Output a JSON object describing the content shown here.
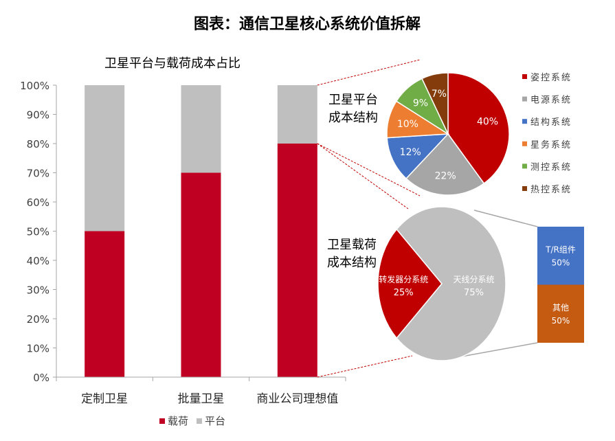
{
  "page": {
    "title": "图表：通信卫星核心系统价值拆解"
  },
  "colors": {
    "payload": "#C00022",
    "platform": "#BFBFBF",
    "attitude": "#C00000",
    "power": "#A6A6A6",
    "structure": "#4472C4",
    "housekeeping": "#ED7D31",
    "ttc": "#70AD47",
    "thermal": "#843C0C",
    "antenna": "#BFBFBF",
    "tr": "#4472C4",
    "other": "#C55A11",
    "connector_red": "#C00000",
    "connector_gray": "#A6A6A6"
  },
  "chart_data": [
    {
      "type": "bar",
      "stacked": true,
      "title": "卫星平台与载荷成本占比",
      "categories": [
        "定制卫星",
        "批量卫星",
        "商业公司理想值"
      ],
      "series": [
        {
          "name": "载荷",
          "values": [
            0.5,
            0.7,
            0.8
          ],
          "color": "#C00022"
        },
        {
          "name": "平台",
          "values": [
            0.5,
            0.3,
            0.2
          ],
          "color": "#BFBFBF"
        }
      ],
      "ylim": [
        0,
        1
      ],
      "yticks": [
        "0%",
        "10%",
        "20%",
        "30%",
        "40%",
        "50%",
        "60%",
        "70%",
        "80%",
        "90%",
        "100%"
      ],
      "grid": false,
      "legend": "bottom"
    },
    {
      "type": "pie",
      "title": "卫星平台\n成本结构",
      "slices": [
        {
          "name": "姿控系统",
          "value": 40,
          "label": "40%",
          "color": "#C00000"
        },
        {
          "name": "电源系统",
          "value": 22,
          "label": "22%",
          "color": "#A6A6A6"
        },
        {
          "name": "结构系统",
          "value": 12,
          "label": "12%",
          "color": "#4472C4"
        },
        {
          "name": "星务系统",
          "value": 10,
          "label": "10%",
          "color": "#ED7D31"
        },
        {
          "name": "测控系统",
          "value": 9,
          "label": "9%",
          "color": "#70AD47"
        },
        {
          "name": "热控系统",
          "value": 7,
          "label": "7%",
          "color": "#843C0C"
        }
      ],
      "legend": "right"
    },
    {
      "type": "pie",
      "title": "卫星载荷\n成本结构",
      "slices": [
        {
          "name": "转发器分系统",
          "value": 25,
          "label": "25%",
          "color": "#C00000"
        },
        {
          "name": "天线分系统",
          "value": 75,
          "label": "75%",
          "color": "#BFBFBF"
        }
      ]
    },
    {
      "type": "bar",
      "stacked": true,
      "orientation": "vertical",
      "segments": [
        {
          "name": "T/R组件",
          "value": 50,
          "label": "50%",
          "color": "#4472C4"
        },
        {
          "name": "其他",
          "value": 50,
          "label": "50%",
          "color": "#C55A11"
        }
      ]
    }
  ]
}
